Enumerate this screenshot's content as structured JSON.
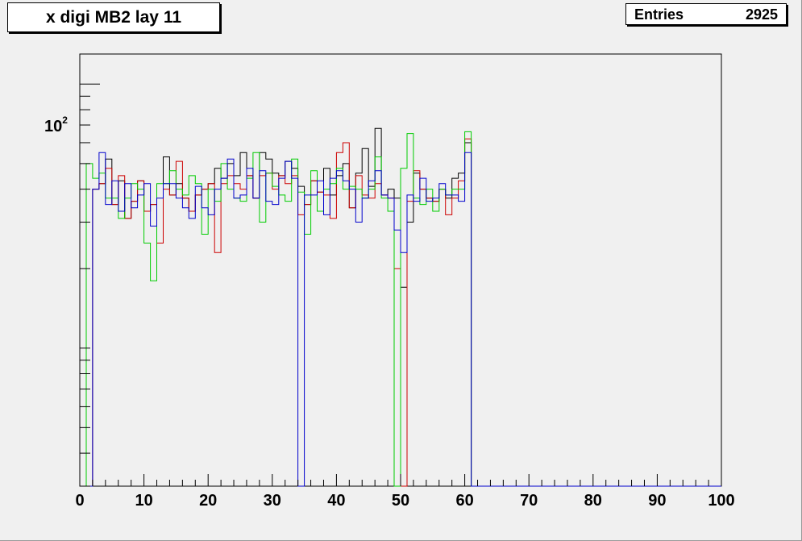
{
  "title": "x digi MB2 lay 11",
  "stats": {
    "label": "Entries",
    "value": "2925"
  },
  "colors": {
    "frame_bg": "#f0f0f0",
    "pad_bg": "#f0f0f0",
    "series": [
      "#000000",
      "#cc0000",
      "#00cc00",
      "#0000cc"
    ]
  },
  "chart_data": {
    "type": "step-histogram",
    "title": "x digi MB2 lay 11",
    "xlim": [
      0,
      100
    ],
    "ylim": [
      3,
      130
    ],
    "ylog": true,
    "x_ticks": [
      "0",
      "10",
      "20",
      "30",
      "40",
      "50",
      "60",
      "70",
      "80",
      "90",
      "100"
    ],
    "y_major_tick": {
      "base": "10",
      "exponent": "2",
      "value": 100
    },
    "bin_width": 1,
    "x_start": 1,
    "grid": false,
    "legend": "none",
    "series": [
      {
        "color": "#000000",
        "values": [
          3,
          40,
          42,
          52,
          35,
          43,
          31,
          36,
          43,
          33,
          35,
          25,
          53,
          38,
          42,
          37,
          33,
          38,
          40,
          42,
          48,
          44,
          50,
          45,
          55,
          45,
          37,
          55,
          52,
          46,
          45,
          51,
          48,
          41,
          35,
          43,
          39,
          48,
          38,
          45,
          50,
          34,
          46,
          57,
          41,
          68,
          38,
          40,
          37,
          17,
          30,
          46,
          40,
          37,
          36,
          40,
          37,
          44,
          46,
          60,
          3
        ]
      },
      {
        "color": "#cc0000",
        "values": [
          3,
          40,
          42,
          48,
          35,
          45,
          31,
          36,
          43,
          33,
          35,
          25,
          40,
          38,
          51,
          37,
          33,
          38,
          40,
          42,
          23,
          42,
          45,
          42,
          40,
          45,
          37,
          45,
          46,
          40,
          45,
          42,
          45,
          32,
          35,
          43,
          39,
          38,
          31,
          55,
          60,
          34,
          45,
          38,
          37,
          42,
          38,
          37,
          20,
          3,
          36,
          47,
          40,
          37,
          36,
          40,
          32,
          37,
          43,
          62,
          3
        ]
      },
      {
        "color": "#00cc00",
        "values": [
          50,
          44,
          46,
          37,
          37,
          31,
          37,
          42,
          40,
          25,
          18,
          42,
          42,
          47,
          40,
          38,
          45,
          42,
          27,
          40,
          36,
          50,
          40,
          37,
          36,
          44,
          55,
          30,
          46,
          41,
          38,
          36,
          52,
          39,
          27,
          47,
          33,
          40,
          42,
          48,
          40,
          41,
          40,
          37,
          40,
          53,
          37,
          33,
          3,
          48,
          65,
          37,
          35,
          40,
          33,
          40,
          38,
          40,
          40,
          66,
          3
        ]
      },
      {
        "color": "#0000cc",
        "values": [
          3,
          40,
          55,
          35,
          43,
          33,
          42,
          34,
          38,
          42,
          29,
          37,
          42,
          42,
          37,
          34,
          31,
          41,
          34,
          32,
          40,
          44,
          52,
          37,
          38,
          48,
          37,
          47,
          36,
          35,
          44,
          51,
          44,
          3,
          38,
          38,
          43,
          32,
          44,
          47,
          43,
          40,
          30,
          37,
          43,
          47,
          38,
          37,
          28,
          23,
          38,
          36,
          44,
          36,
          37,
          42,
          38,
          38,
          36,
          55,
          3
        ]
      }
    ]
  }
}
